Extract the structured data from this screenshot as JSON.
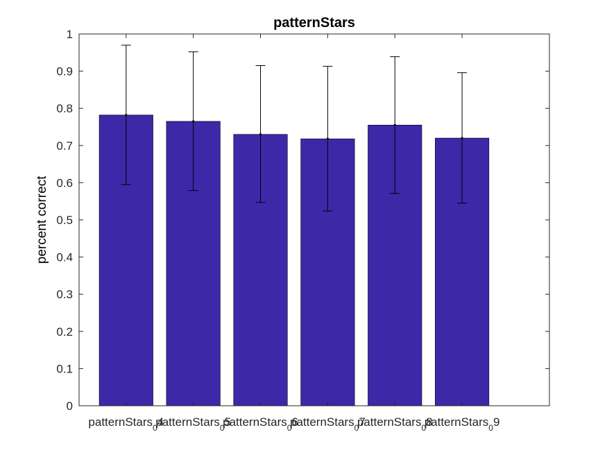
{
  "chart_data": {
    "type": "bar",
    "title": "patternStars",
    "xlabel": "",
    "ylabel": "percent correct",
    "categories": [
      {
        "main": "patternStars_4",
        "sub": "0"
      },
      {
        "main": "patternStars_5",
        "sub": "0"
      },
      {
        "main": "patternStars_6",
        "sub": "0"
      },
      {
        "main": "patternStars_7",
        "sub": "0"
      },
      {
        "main": "patternStars_8",
        "sub": "0"
      },
      {
        "main": "patternStars_9",
        "sub": "0"
      }
    ],
    "values": [
      0.782,
      0.765,
      0.73,
      0.718,
      0.755,
      0.72
    ],
    "error_upper": [
      0.97,
      0.952,
      0.915,
      0.913,
      0.939,
      0.896
    ],
    "error_lower": [
      0.595,
      0.579,
      0.547,
      0.524,
      0.571,
      0.545
    ],
    "ylim": [
      0,
      1
    ],
    "xlim": [
      0.3,
      7.3
    ],
    "yticks": [
      "0",
      "0.1",
      "0.2",
      "0.3",
      "0.4",
      "0.5",
      "0.6",
      "0.7",
      "0.8",
      "0.9",
      "1"
    ],
    "bar_color": "#3d28a8",
    "grid": false,
    "legend": "none"
  }
}
